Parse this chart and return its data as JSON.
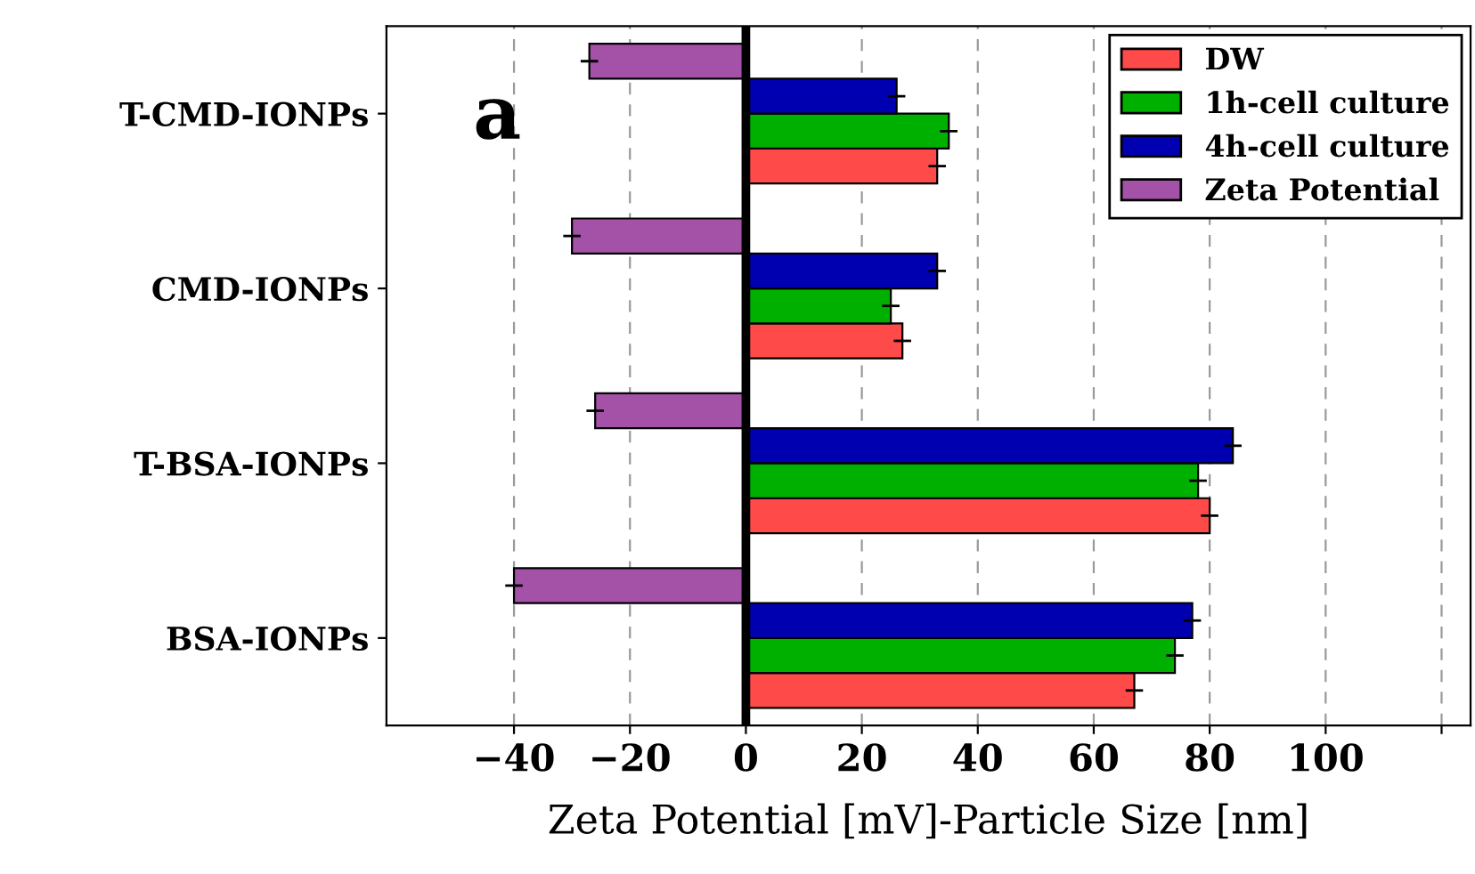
{
  "chart_data": {
    "type": "bar",
    "orientation": "horizontal",
    "categories": [
      "T-CMD-IONPs",
      "CMD-IONPs",
      "T-BSA-IONPs",
      "BSA-IONPs"
    ],
    "series": [
      {
        "name": "DW",
        "color": "#ff4a4a",
        "values": [
          33,
          27,
          80,
          67
        ],
        "errors": [
          1.5,
          1.5,
          1.5,
          1.5
        ]
      },
      {
        "name": "1h-cell culture",
        "color": "#00b000",
        "values": [
          35,
          25,
          78,
          74
        ],
        "errors": [
          1.5,
          1.5,
          1.5,
          1.5
        ]
      },
      {
        "name": "4h-cell culture",
        "color": "#0000b0",
        "values": [
          26,
          33,
          84,
          77
        ],
        "errors": [
          1.5,
          1.5,
          1.5,
          1.5
        ]
      },
      {
        "name": "Zeta Potential",
        "color": "#a451a8",
        "values": [
          -27,
          -30,
          -26,
          -40
        ],
        "errors": [
          1.5,
          1.5,
          1.5,
          1.5
        ]
      }
    ],
    "xlim": [
      -62,
      125
    ],
    "xticks": [
      -40,
      -20,
      0,
      20,
      40,
      60,
      80,
      100,
      {
        "value": 120,
        "label": null
      }
    ],
    "xlabel": "Zeta Potential [mV]-Particle Size [nm]",
    "grid": "x",
    "legend": "top right",
    "ref_lines": [
      {
        "axis": "x",
        "value": 0,
        "color": "#000000"
      }
    ],
    "annotations": [
      "a"
    ]
  }
}
